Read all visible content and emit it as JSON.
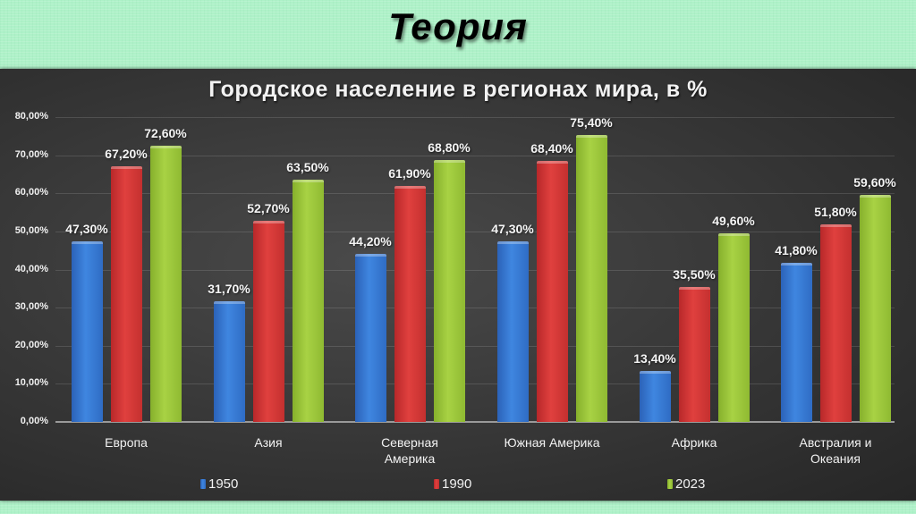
{
  "slide": {
    "title": "Теория"
  },
  "chart_data": {
    "type": "bar",
    "title": "Городское население в регионах мира, в %",
    "xlabel": "",
    "ylabel": "",
    "ylim": [
      0,
      80
    ],
    "yticks": [
      "0,00%",
      "10,00%",
      "20,00%",
      "30,00%",
      "40,00%",
      "50,00%",
      "60,00%",
      "70,00%",
      "80,00%"
    ],
    "grid": true,
    "legend_position": "bottom",
    "categories": [
      "Европа",
      "Азия",
      "Северная Америка",
      "Южная Америка",
      "Африка",
      "Австралия и Океания"
    ],
    "series": [
      {
        "name": "1950",
        "color": "#3a7bd5",
        "values": [
          47.3,
          31.7,
          44.2,
          47.3,
          13.4,
          41.8
        ],
        "labels": [
          "47,30%",
          "31,70%",
          "44,20%",
          "47,30%",
          "13,40%",
          "41,80%"
        ]
      },
      {
        "name": "1990",
        "color": "#d9383a",
        "values": [
          67.2,
          52.7,
          61.9,
          68.4,
          35.5,
          51.8
        ],
        "labels": [
          "67,20%",
          "52,70%",
          "61,90%",
          "68,40%",
          "35,50%",
          "51,80%"
        ]
      },
      {
        "name": "2023",
        "color": "#9ccb3c",
        "values": [
          72.6,
          63.5,
          68.8,
          75.4,
          49.6,
          59.6
        ],
        "labels": [
          "72,60%",
          "63,50%",
          "68,80%",
          "75,40%",
          "49,60%",
          "59,60%"
        ]
      }
    ]
  }
}
